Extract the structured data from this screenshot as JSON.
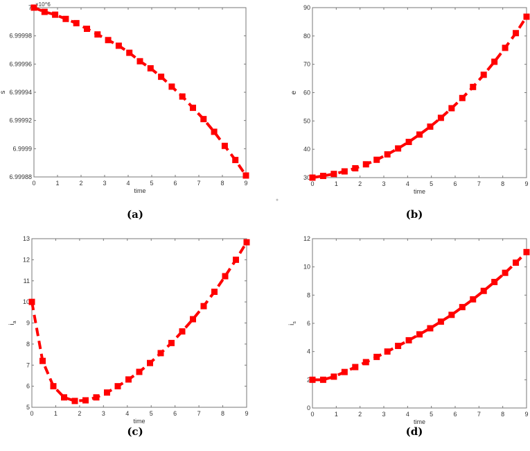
{
  "chart_data": [
    {
      "type": "line",
      "caption": "(a)",
      "xlabel": "time",
      "ylabel": "s",
      "ymultiplier": "×10^6",
      "xlim": [
        0,
        9
      ],
      "ylim": [
        6.99988,
        7.0
      ],
      "xticks": [
        "0",
        "1",
        "2",
        "3",
        "4",
        "5",
        "6",
        "7",
        "8",
        "9"
      ],
      "yticks": [
        "6.99988",
        "6.9999",
        "6.99992",
        "6.99994",
        "6.99996",
        "6.99998",
        "7"
      ],
      "ytick_values": [
        6.99988,
        6.9999,
        6.99992,
        6.99994,
        6.99996,
        6.99998,
        7.0
      ],
      "grid": false,
      "line_style": "dashed",
      "marker": "square",
      "color": "#ff0000",
      "x": [
        0,
        0.45,
        0.9,
        1.35,
        1.8,
        2.25,
        2.7,
        3.15,
        3.6,
        4.05,
        4.5,
        4.95,
        5.4,
        5.85,
        6.3,
        6.75,
        7.2,
        7.65,
        8.1,
        8.55,
        9
      ],
      "y": [
        7.0,
        6.999997,
        6.999995,
        6.999992,
        6.999989,
        6.999985,
        6.999981,
        6.999977,
        6.999973,
        6.999968,
        6.999962,
        6.999957,
        6.999951,
        6.999944,
        6.999937,
        6.999929,
        6.999921,
        6.999912,
        6.999902,
        6.999892,
        6.999881
      ]
    },
    {
      "type": "line",
      "caption": "(b)",
      "xlabel": "time",
      "ylabel": "e",
      "xlim": [
        0,
        9
      ],
      "ylim": [
        30,
        90
      ],
      "xticks": [
        "0",
        "1",
        "2",
        "3",
        "4",
        "5",
        "6",
        "7",
        "8",
        "9"
      ],
      "yticks": [
        "30",
        "40",
        "50",
        "60",
        "70",
        "80",
        "90"
      ],
      "ytick_values": [
        30,
        40,
        50,
        60,
        70,
        80,
        90
      ],
      "grid": false,
      "line_style": "dashed",
      "marker": "square",
      "color": "#ff0000",
      "x": [
        0,
        0.45,
        0.9,
        1.35,
        1.8,
        2.25,
        2.7,
        3.15,
        3.6,
        4.05,
        4.5,
        4.95,
        5.4,
        5.85,
        6.3,
        6.75,
        7.2,
        7.65,
        8.1,
        8.55,
        9
      ],
      "y": [
        30,
        30.6,
        31.3,
        32.2,
        33.3,
        34.7,
        36.3,
        38.2,
        40.3,
        42.6,
        45.2,
        48.0,
        51.1,
        54.5,
        58.1,
        62.0,
        66.3,
        70.9,
        75.8,
        81.0,
        86.8
      ]
    },
    {
      "type": "line",
      "caption": "(c)",
      "xlabel": "time",
      "ylabel": "i",
      "ylabel_sub": "a",
      "xlim": [
        0,
        9
      ],
      "ylim": [
        5,
        13
      ],
      "xticks": [
        "0",
        "1",
        "2",
        "3",
        "4",
        "5",
        "6",
        "7",
        "8",
        "9"
      ],
      "yticks": [
        "5",
        "6",
        "7",
        "8",
        "9",
        "10",
        "11",
        "12",
        "13"
      ],
      "ytick_values": [
        5,
        6,
        7,
        8,
        9,
        10,
        11,
        12,
        13
      ],
      "grid": false,
      "line_style": "dashed",
      "marker": "square",
      "color": "#ff0000",
      "x": [
        0,
        0.45,
        0.9,
        1.35,
        1.8,
        2.25,
        2.7,
        3.15,
        3.6,
        4.05,
        4.5,
        4.95,
        5.4,
        5.85,
        6.3,
        6.75,
        7.2,
        7.65,
        8.1,
        8.55,
        9
      ],
      "y": [
        10.0,
        7.2,
        6.0,
        5.47,
        5.3,
        5.33,
        5.47,
        5.7,
        6.0,
        6.32,
        6.68,
        7.1,
        7.57,
        8.05,
        8.6,
        9.18,
        9.8,
        10.48,
        11.22,
        12.0,
        12.83
      ]
    },
    {
      "type": "line",
      "caption": "(d)",
      "xlabel": "time",
      "ylabel": "i",
      "ylabel_sub": "s",
      "xlim": [
        0,
        9
      ],
      "ylim": [
        0,
        12
      ],
      "xticks": [
        "0",
        "1",
        "2",
        "3",
        "4",
        "5",
        "6",
        "7",
        "8",
        "9"
      ],
      "yticks": [
        "0",
        "2",
        "4",
        "6",
        "8",
        "10",
        "12"
      ],
      "ytick_values": [
        0,
        2,
        4,
        6,
        8,
        10,
        12
      ],
      "grid": false,
      "line_style": "dashed",
      "marker": "square",
      "color": "#ff0000",
      "x": [
        0,
        0.45,
        0.9,
        1.35,
        1.8,
        2.25,
        2.7,
        3.15,
        3.6,
        4.05,
        4.5,
        4.95,
        5.4,
        5.85,
        6.3,
        6.75,
        7.2,
        7.65,
        8.1,
        8.55,
        9
      ],
      "y": [
        2.0,
        2.0,
        2.22,
        2.55,
        2.9,
        3.25,
        3.62,
        4.0,
        4.4,
        4.8,
        5.22,
        5.65,
        6.12,
        6.6,
        7.15,
        7.7,
        8.3,
        8.93,
        9.58,
        10.3,
        11.05
      ]
    }
  ]
}
